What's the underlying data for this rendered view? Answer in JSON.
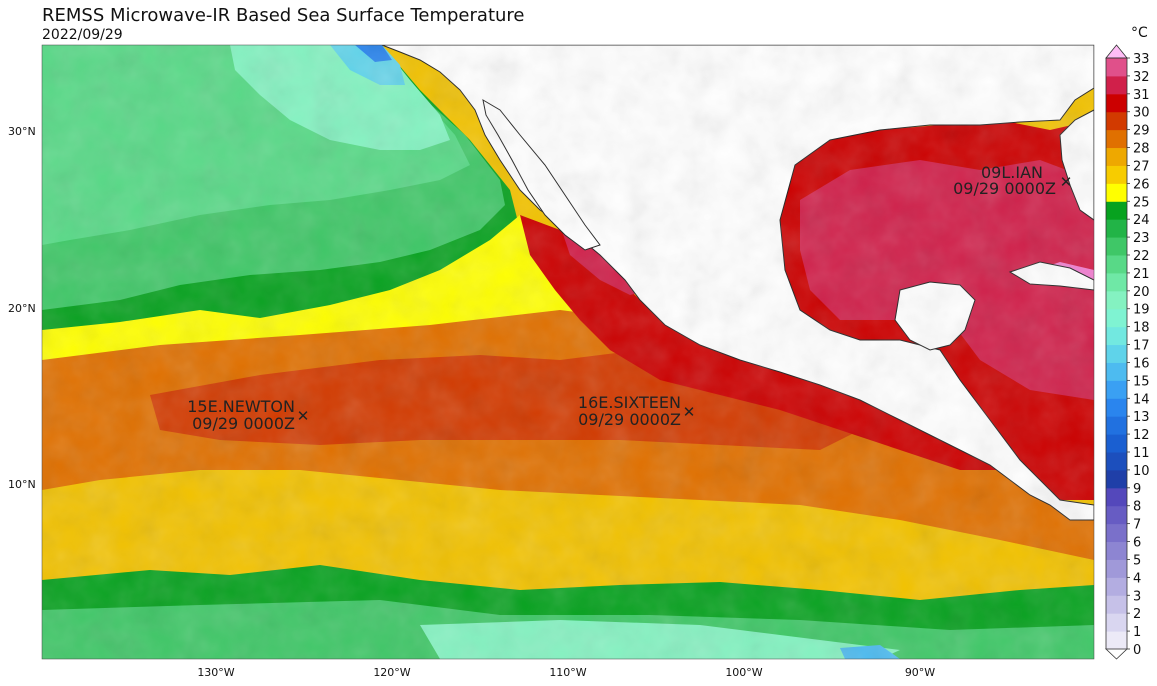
{
  "title": "REMSS Microwave-IR Based Sea Surface Temperature",
  "date": "2022/09/29",
  "colorbar": {
    "unit": "°C",
    "ticks": [
      "0",
      "1",
      "2",
      "3",
      "4",
      "5",
      "6",
      "7",
      "8",
      "9",
      "10",
      "11",
      "12",
      "13",
      "14",
      "15",
      "16",
      "17",
      "18",
      "19",
      "20",
      "21",
      "22",
      "23",
      "24",
      "25",
      "26",
      "27",
      "28",
      "29",
      "30",
      "31",
      "32",
      "33"
    ],
    "colors": [
      "#ffffff",
      "#eceaf7",
      "#d9d6f0",
      "#c6c1e8",
      "#b3ade1",
      "#a099d9",
      "#8d85d2",
      "#7a70ca",
      "#675cc3",
      "#5448bb",
      "#1f3fa8",
      "#1c4fbd",
      "#1a5fd1",
      "#2171e0",
      "#2a85ee",
      "#3aa0f3",
      "#4dbbf0",
      "#5fd3ea",
      "#72e8e0",
      "#7ff3d2",
      "#84f2c1",
      "#6fe8a6",
      "#58d987",
      "#3fc767",
      "#22b447",
      "#07a21f",
      "#ffff00",
      "#f7cc00",
      "#eea800",
      "#e07000",
      "#d23a00",
      "#cc0000",
      "#d0204a",
      "#e0508a",
      "#f080d0",
      "#ffbdf5"
    ]
  },
  "axes": {
    "lat_labels": [
      "30°N",
      "20°N",
      "10°N"
    ],
    "lon_labels": [
      "130°W",
      "120°W",
      "110°W",
      "100°W",
      "90°W"
    ]
  },
  "storms": [
    {
      "name": "09L.IAN",
      "time": "09/29 0000Z"
    },
    {
      "name": "15E.NEWTON",
      "time": "09/29 0000Z"
    },
    {
      "name": "16E.SIXTEEN",
      "time": "09/29 0000Z"
    }
  ]
}
